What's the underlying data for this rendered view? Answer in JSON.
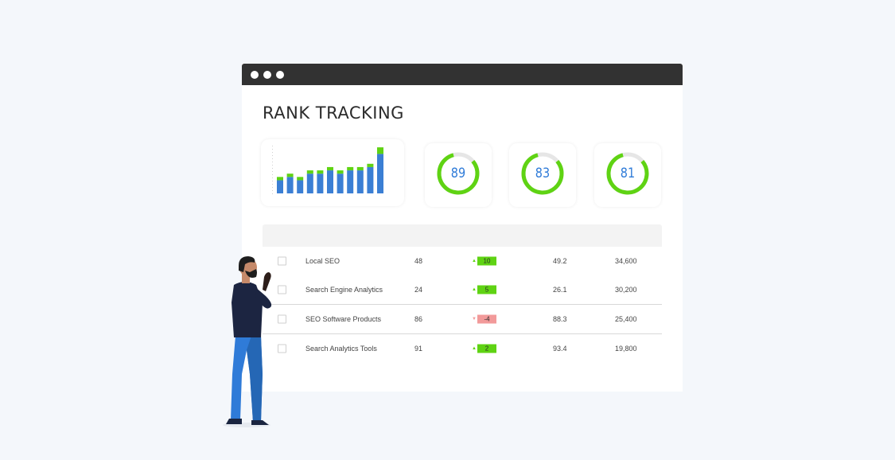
{
  "page": {
    "title": "RANK TRACKING"
  },
  "colors": {
    "accent_blue": "#2f7bd8",
    "accent_green": "#5fd313",
    "negative_red": "#f29a9a",
    "titlebar": "#323232"
  },
  "chart_data": {
    "type": "bar",
    "stacked": true,
    "title": "",
    "xlabel": "",
    "ylabel": "",
    "grid": false,
    "series": [
      {
        "values": [
          4,
          5,
          4,
          6,
          6,
          7,
          6,
          7,
          7,
          8,
          12
        ]
      },
      {
        "values": [
          1,
          1,
          1,
          1,
          1,
          1,
          1,
          1,
          1,
          1,
          2
        ]
      }
    ],
    "series_colors": [
      "#3b7fd4",
      "#5fd313"
    ],
    "ylim": [
      0,
      15
    ]
  },
  "gauges": [
    {
      "value": "89",
      "fill_fraction": 0.82
    },
    {
      "value": "83",
      "fill_fraction": 0.82
    },
    {
      "value": "81",
      "fill_fraction": 0.82
    }
  ],
  "table": {
    "rows": [
      {
        "keyword": "Local SEO",
        "rank": "48",
        "change": "10",
        "direction": "up",
        "volume": "49.2",
        "traffic": "34,600"
      },
      {
        "keyword": "Search Engine Analytics",
        "rank": "24",
        "change": "5",
        "direction": "up",
        "volume": "26.1",
        "traffic": "30,200"
      },
      {
        "keyword": "SEO Software Products",
        "rank": "86",
        "change": "-4",
        "direction": "down",
        "volume": "88.3",
        "traffic": "25,400"
      },
      {
        "keyword": "Search Analytics Tools",
        "rank": "91",
        "change": "2",
        "direction": "up",
        "volume": "93.4",
        "traffic": "19,800"
      }
    ]
  }
}
